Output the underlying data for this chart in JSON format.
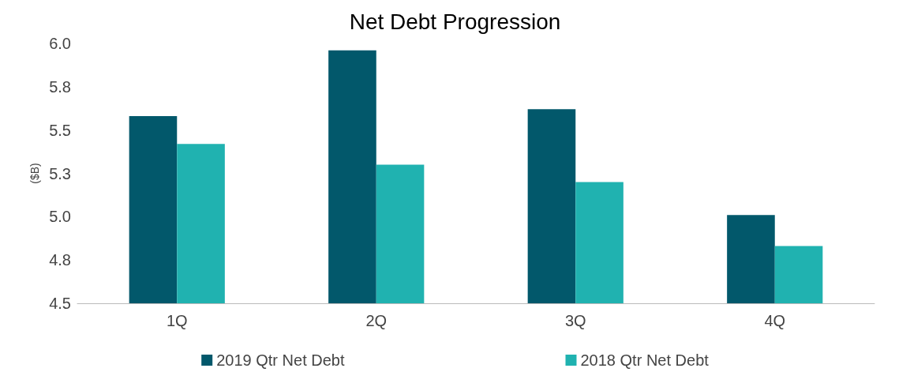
{
  "chart_data": {
    "type": "bar",
    "title": "Net Debt Progression",
    "ylabel": "($B)",
    "categories": [
      "1Q",
      "2Q",
      "3Q",
      "4Q"
    ],
    "series": [
      {
        "name": "2019 Qtr Net Debt",
        "color": "#02586b",
        "values": [
          5.58,
          5.96,
          5.62,
          5.01
        ]
      },
      {
        "name": "2018 Qtr Net Debt",
        "color": "#20b2b0",
        "values": [
          5.42,
          5.3,
          5.2,
          4.83
        ]
      }
    ],
    "ylim": [
      4.5,
      6.0
    ],
    "yticks": [
      {
        "value": 4.5,
        "label": "4.5"
      },
      {
        "value": 4.75,
        "label": "4.8"
      },
      {
        "value": 5.0,
        "label": "5.0"
      },
      {
        "value": 5.25,
        "label": "5.3"
      },
      {
        "value": 5.5,
        "label": "5.5"
      },
      {
        "value": 5.75,
        "label": "5.8"
      },
      {
        "value": 6.0,
        "label": "6.0"
      }
    ],
    "grid": false,
    "legend": "bottom"
  }
}
